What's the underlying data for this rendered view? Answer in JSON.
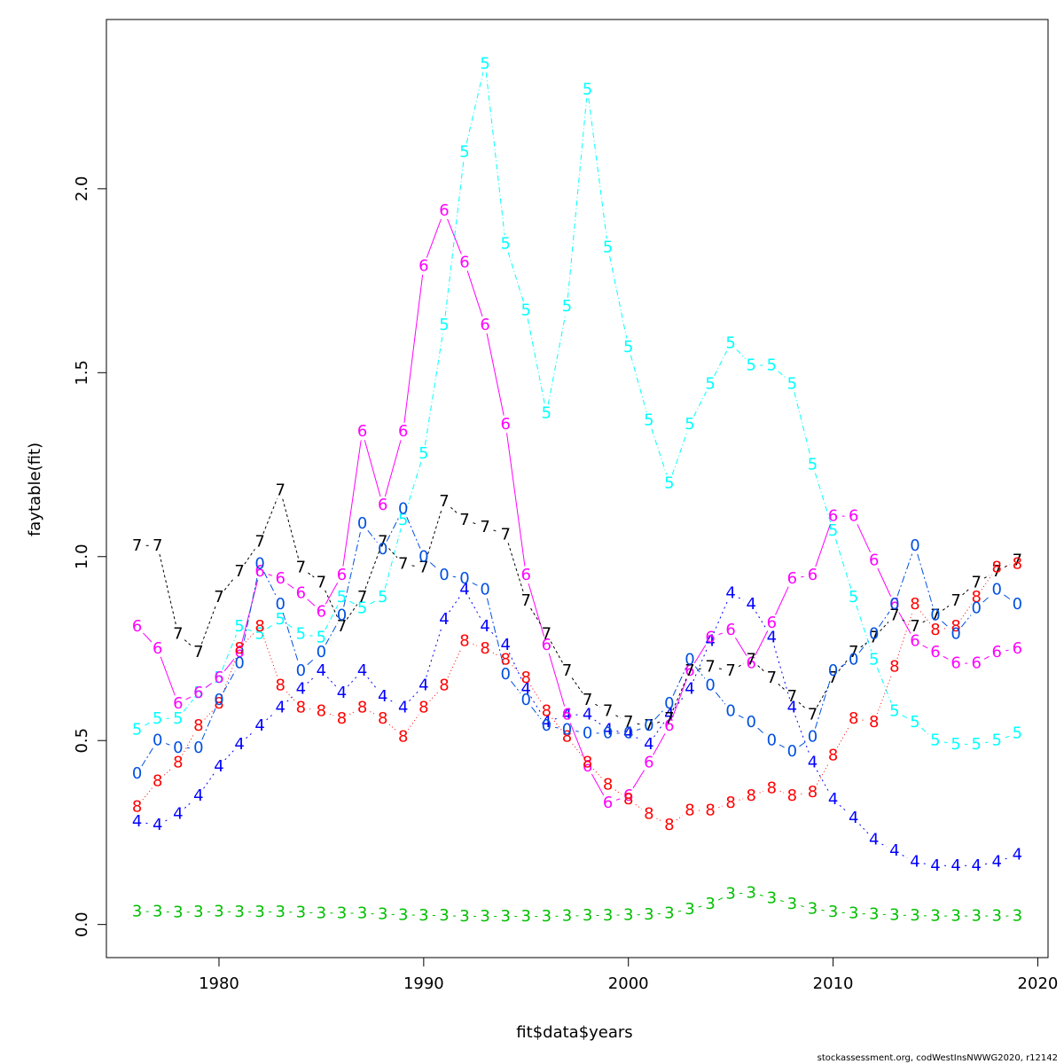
{
  "chart_data": {
    "type": "line",
    "title": "",
    "xlabel": "fit$data$years",
    "ylabel": "faytable(fit)",
    "xlim": [
      1974.5,
      2020.5
    ],
    "ylim": [
      -0.09,
      2.46
    ],
    "x_ticks": [
      1980,
      1990,
      2000,
      2010,
      2020
    ],
    "x_tick_labels": [
      "1980",
      "1990",
      "2000",
      "2010",
      "2020"
    ],
    "y_ticks": [
      0.0,
      0.5,
      1.0,
      1.5,
      2.0
    ],
    "y_tick_labels": [
      "0.0",
      "0.5",
      "1.0",
      "1.5",
      "2.0"
    ],
    "grid": false,
    "legend": "none",
    "x": [
      1976,
      1977,
      1978,
      1979,
      1980,
      1981,
      1982,
      1983,
      1984,
      1985,
      1986,
      1987,
      1988,
      1989,
      1990,
      1991,
      1992,
      1993,
      1994,
      1995,
      1996,
      1997,
      1998,
      1999,
      2000,
      2001,
      2002,
      2003,
      2004,
      2005,
      2006,
      2007,
      2008,
      2009,
      2010,
      2011,
      2012,
      2013,
      2014,
      2015,
      2016,
      2017,
      2018,
      2019
    ],
    "series": [
      {
        "symbol": "3",
        "color": "#00bf00",
        "dash": "",
        "values": [
          0.035,
          0.035,
          0.033,
          0.034,
          0.035,
          0.034,
          0.034,
          0.034,
          0.033,
          0.031,
          0.031,
          0.03,
          0.028,
          0.026,
          0.025,
          0.024,
          0.022,
          0.022,
          0.022,
          0.022,
          0.022,
          0.023,
          0.024,
          0.025,
          0.026,
          0.027,
          0.031,
          0.041,
          0.056,
          0.083,
          0.086,
          0.072,
          0.056,
          0.043,
          0.034,
          0.03,
          0.028,
          0.026,
          0.024,
          0.023,
          0.023,
          0.023,
          0.023,
          0.023
        ]
      },
      {
        "symbol": "4",
        "color": "#0000ff",
        "dash": "2,4",
        "values": [
          0.28,
          0.27,
          0.3,
          0.35,
          0.43,
          0.49,
          0.54,
          0.59,
          0.64,
          0.69,
          0.63,
          0.69,
          0.62,
          0.59,
          0.65,
          0.83,
          0.91,
          0.81,
          0.76,
          0.64,
          0.55,
          0.57,
          0.57,
          0.53,
          0.52,
          0.49,
          0.57,
          0.64,
          0.77,
          0.9,
          0.87,
          0.78,
          0.59,
          0.44,
          0.34,
          0.29,
          0.23,
          0.2,
          0.17,
          0.16,
          0.16,
          0.16,
          0.17,
          0.19
        ]
      },
      {
        "symbol": "5",
        "color": "#00ffff",
        "dash": "6,3,1,3",
        "values": [
          0.53,
          0.56,
          0.56,
          0.63,
          0.67,
          0.81,
          0.79,
          0.83,
          0.79,
          0.78,
          0.89,
          0.86,
          0.89,
          1.1,
          1.28,
          1.63,
          2.1,
          2.34,
          1.85,
          1.67,
          1.39,
          1.68,
          2.27,
          1.84,
          1.57,
          1.37,
          1.2,
          1.36,
          1.47,
          1.58,
          1.52,
          1.52,
          1.47,
          1.25,
          1.07,
          0.89,
          0.72,
          0.58,
          0.55,
          0.5,
          0.49,
          0.49,
          0.5,
          0.52
        ]
      },
      {
        "symbol": "6",
        "color": "#ff00ff",
        "dash": "",
        "values": [
          0.81,
          0.75,
          0.6,
          0.63,
          0.67,
          0.74,
          0.96,
          0.94,
          0.9,
          0.85,
          0.95,
          1.34,
          1.14,
          1.34,
          1.79,
          1.94,
          1.8,
          1.63,
          1.36,
          0.95,
          0.76,
          0.57,
          0.43,
          0.33,
          0.35,
          0.44,
          0.54,
          0.69,
          0.78,
          0.8,
          0.71,
          0.82,
          0.94,
          0.95,
          1.11,
          1.11,
          0.99,
          0.87,
          0.77,
          0.74,
          0.71,
          0.71,
          0.74,
          0.75
        ]
      },
      {
        "symbol": "7",
        "color": "#000000",
        "dash": "3,3",
        "values": [
          1.03,
          1.03,
          0.79,
          0.74,
          0.89,
          0.96,
          1.04,
          1.18,
          0.97,
          0.93,
          0.81,
          0.89,
          1.04,
          0.98,
          0.97,
          1.15,
          1.1,
          1.08,
          1.06,
          0.88,
          0.79,
          0.69,
          0.61,
          0.58,
          0.55,
          0.54,
          0.56,
          0.69,
          0.7,
          0.69,
          0.72,
          0.67,
          0.62,
          0.57,
          0.67,
          0.74,
          0.78,
          0.84,
          0.81,
          0.84,
          0.88,
          0.93,
          0.96,
          0.99
        ]
      },
      {
        "symbol": "8",
        "color": "#ff0000",
        "dash": "1,3",
        "values": [
          0.32,
          0.39,
          0.44,
          0.54,
          0.6,
          0.75,
          0.81,
          0.65,
          0.59,
          0.58,
          0.56,
          0.59,
          0.56,
          0.51,
          0.59,
          0.65,
          0.77,
          0.75,
          0.72,
          0.67,
          0.58,
          0.51,
          0.44,
          0.38,
          0.34,
          0.3,
          0.27,
          0.31,
          0.31,
          0.33,
          0.35,
          0.37,
          0.35,
          0.36,
          0.46,
          0.56,
          0.55,
          0.7,
          0.87,
          0.8,
          0.81,
          0.89,
          0.97,
          0.98
        ]
      },
      {
        "symbol": "0",
        "color": "#0050e0",
        "dash": "8,3,2,3",
        "values": [
          0.41,
          0.5,
          0.48,
          0.48,
          0.61,
          0.71,
          0.98,
          0.87,
          0.69,
          0.74,
          0.84,
          1.09,
          1.02,
          1.13,
          1.0,
          0.95,
          0.94,
          0.91,
          0.68,
          0.61,
          0.54,
          0.53,
          0.52,
          0.52,
          0.52,
          0.54,
          0.6,
          0.72,
          0.65,
          0.58,
          0.55,
          0.5,
          0.47,
          0.51,
          0.69,
          0.72,
          0.79,
          0.87,
          1.03,
          0.84,
          0.79,
          0.86,
          0.91,
          0.87
        ]
      }
    ]
  },
  "footer": {
    "credit": "stockassessment.org, codWestInsNWWG2020, r12142"
  }
}
